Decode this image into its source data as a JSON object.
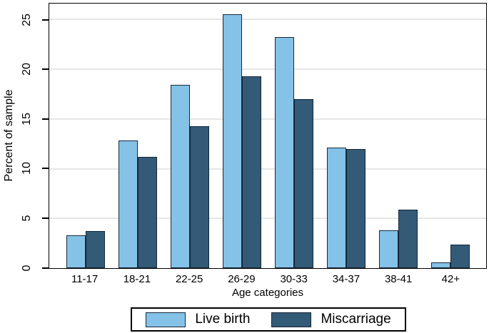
{
  "chart_data": {
    "type": "bar",
    "title": "",
    "xlabel": "Age categories",
    "ylabel": "Percent of sample",
    "categories": [
      "11-17",
      "18-21",
      "22-25",
      "26-29",
      "30-33",
      "34-37",
      "38-41",
      "42+"
    ],
    "series": [
      {
        "name": "Live birth",
        "color": "#85C2E7",
        "values": [
          3.3,
          12.8,
          18.4,
          25.5,
          23.2,
          12.1,
          3.8,
          0.6
        ]
      },
      {
        "name": "Miscarriage",
        "color": "#335A76",
        "values": [
          3.7,
          11.2,
          14.3,
          19.3,
          17.0,
          12.0,
          5.9,
          2.4
        ]
      }
    ],
    "yticks": [
      0,
      5,
      10,
      15,
      20,
      25
    ],
    "ylim": [
      0,
      26.6
    ],
    "grid": "horizontal-only",
    "legend_position": "bottom-center",
    "colors": {
      "bar_border": "#16283a",
      "gridline": "#e6e6e6",
      "axis": "#000000",
      "background": "#ffffff"
    }
  }
}
